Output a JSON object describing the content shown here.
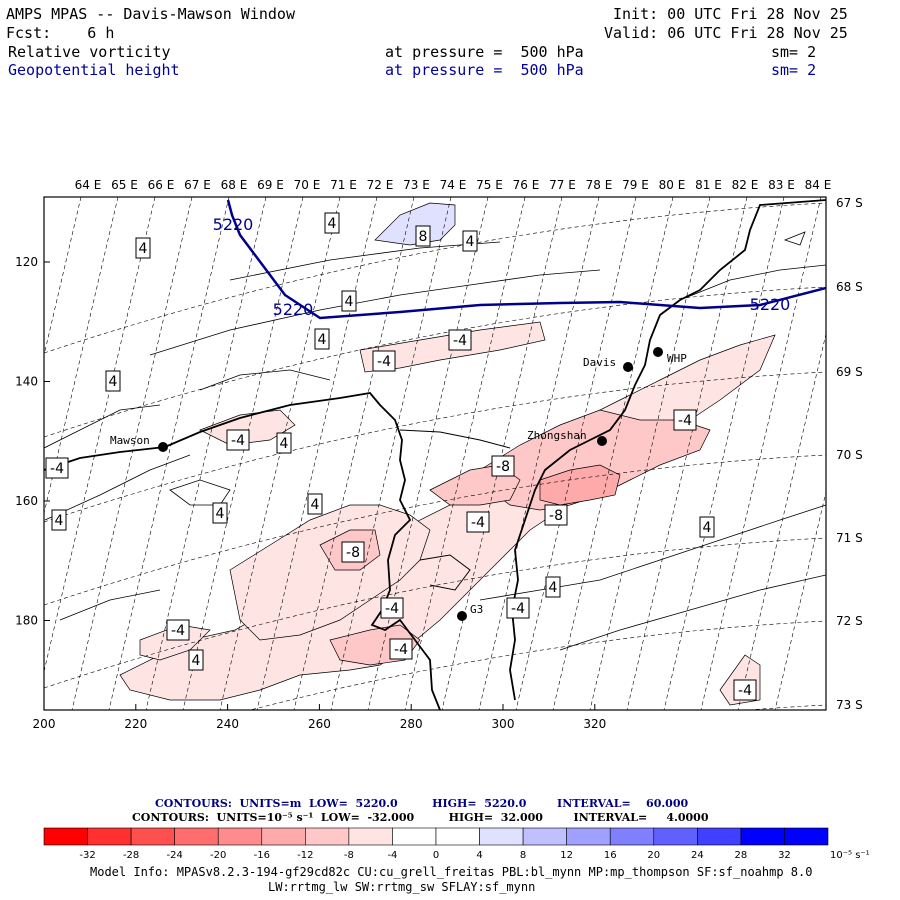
{
  "header": {
    "title": "AMPS MPAS -- Davis-Mawson Window",
    "init": "Init: 00 UTC Fri 28 Nov 25",
    "fcst": "Fcst:    6 h",
    "valid": "Valid: 06 UTC Fri 28 Nov 25",
    "field1": {
      "name": "Relative vorticity",
      "level": "at pressure =  500 hPa",
      "sm": "sm= 2"
    },
    "field2": {
      "name": "Geopotential height",
      "level": "at pressure =  500 hPa",
      "sm": "sm= 2"
    }
  },
  "lon_labels": [
    "64 E",
    "65 E",
    "66 E",
    "67 E",
    "68 E",
    "69 E",
    "70 E",
    "71 E",
    "72 E",
    "73 E",
    "74 E",
    "75 E",
    "76 E",
    "77 E",
    "78 E",
    "79 E",
    "80 E",
    "81 E",
    "82 E",
    "83 E",
    "84 E"
  ],
  "lat_labels": [
    "67 S",
    "68 S",
    "69 S",
    "70 S",
    "71 S",
    "72 S",
    "73 S"
  ],
  "x_ticks": [
    "200",
    "220",
    "240",
    "260",
    "280",
    "300",
    "320"
  ],
  "y_ticks": [
    "120",
    "140",
    "160",
    "180"
  ],
  "stations": [
    {
      "name": "Mawson"
    },
    {
      "name": "Davis"
    },
    {
      "name": "WHP"
    },
    {
      "name": "Zhongshan"
    },
    {
      "name": "G3"
    }
  ],
  "height_contour_label": "5220",
  "vort_labels": [
    "4",
    "-4",
    "8",
    "-8"
  ],
  "contour_info": {
    "line1": "CONTOURS:  UNITS=m  LOW=  5220.0         HIGH=  5220.0        INTERVAL=    60.000",
    "line2": "CONTOURS:  UNITS=10⁻⁵ s⁻¹  LOW=  -32.000         HIGH=  32.000        INTERVAL=     4.0000"
  },
  "colorbar": {
    "labels": [
      "-32",
      "-28",
      "-24",
      "-20",
      "-16",
      "-12",
      "-8",
      "-4",
      "0",
      "4",
      "8",
      "12",
      "16",
      "20",
      "24",
      "28",
      "32"
    ],
    "unit": "10⁻⁵ s⁻¹",
    "colors": [
      "#ff0000",
      "#ff3030",
      "#ff5050",
      "#ff6e6e",
      "#ff8c8c",
      "#ffaaaa",
      "#ffc8c8",
      "#ffe4e4",
      "#ffffff",
      "#ffffff",
      "#e0e0ff",
      "#c0c0ff",
      "#a0a0ff",
      "#8080ff",
      "#6060ff",
      "#4040ff",
      "#0000ff",
      "#0000ff"
    ]
  },
  "footer": {
    "line1": "Model Info: MPASv8.2.3-194-gf29cd82c CU:cu_grell_freitas PBL:bl_mynn MP:mp_thompson SF:sf_noahmp 8.0",
    "line2": "LW:rrtmg_lw SW:rrtmg_sw SFLAY:sf_mynn"
  }
}
